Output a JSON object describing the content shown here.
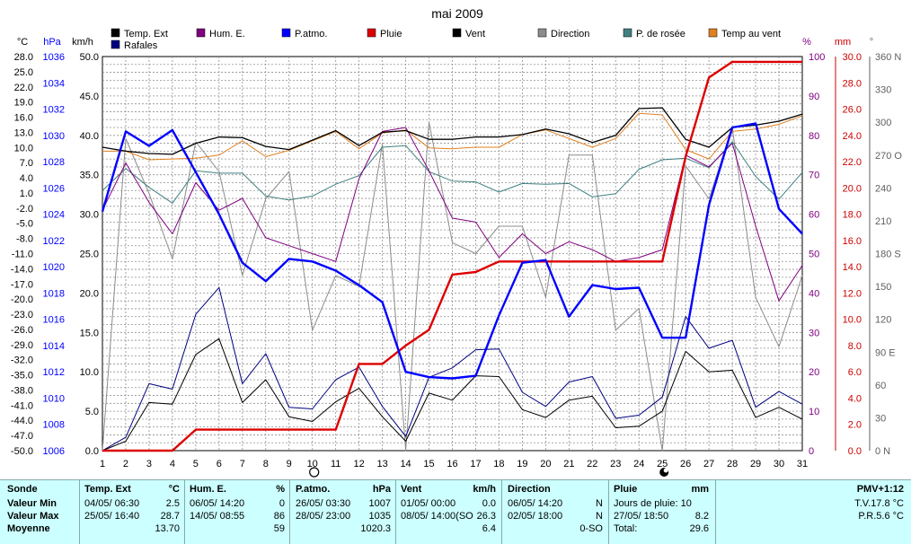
{
  "colors": {
    "temp": "#000000",
    "rafales": "#000080",
    "hum": "#800080",
    "patm": "#0000ff",
    "pluie": "#dd0000",
    "vent": "#000000",
    "direction": "#8c8c8c",
    "rosee": "#408080",
    "tvent": "#e08020",
    "grid": "#909090",
    "panel_bg": "#ccffff"
  },
  "chart_data": {
    "type": "line",
    "title": "mai 2009",
    "x": [
      1,
      2,
      3,
      4,
      5,
      6,
      7,
      8,
      9,
      10,
      11,
      12,
      13,
      14,
      15,
      16,
      17,
      18,
      19,
      20,
      21,
      22,
      23,
      24,
      25,
      26,
      27,
      28,
      29,
      30,
      31
    ],
    "axes": {
      "temp_c": {
        "unit": "°C",
        "ticks": [
          "28.0",
          "25.0",
          "22.0",
          "19.0",
          "16.0",
          "13.0",
          "10.0",
          "7.0",
          "4.0",
          "1.0",
          "-2.0",
          "-5.0",
          "-8.0",
          "-11.0",
          "-14.0",
          "-17.0",
          "-20.0",
          "-23.0",
          "-26.0",
          "-29.0",
          "-32.0",
          "-35.0",
          "-38.0",
          "-41.0",
          "-44.0",
          "-47.0",
          "-50.0"
        ]
      },
      "hpa": {
        "unit": "hPa",
        "ticks": [
          "1036",
          "1034",
          "1032",
          "1030",
          "1028",
          "1026",
          "1024",
          "1022",
          "1020",
          "1018",
          "1016",
          "1014",
          "1012",
          "1010",
          "1008",
          "1006"
        ],
        "range": [
          1006,
          1036
        ]
      },
      "kmh": {
        "unit": "km/h",
        "ticks": [
          "50.0",
          "45.0",
          "40.0",
          "35.0",
          "30.0",
          "25.0",
          "20.0",
          "15.0",
          "10.0",
          "5.0",
          "0.0"
        ],
        "range": [
          0,
          50
        ]
      },
      "pct": {
        "unit": "%",
        "ticks": [
          "100",
          "90",
          "80",
          "70",
          "60",
          "50",
          "40",
          "30",
          "20",
          "10",
          "0"
        ],
        "range": [
          0,
          100
        ]
      },
      "mm": {
        "unit": "mm",
        "ticks": [
          "30.0",
          "28.0",
          "26.0",
          "24.0",
          "22.0",
          "20.0",
          "18.0",
          "16.0",
          "14.0",
          "12.0",
          "10.0",
          "8.0",
          "6.0",
          "4.0",
          "2.0",
          "0.0"
        ],
        "range": [
          0,
          30
        ]
      },
      "deg": {
        "unit": "°",
        "ticks": [
          "360 N",
          "330",
          "300",
          "270 O",
          "240",
          "210",
          "180 S",
          "150",
          "120",
          "90 E",
          "60",
          "30",
          "0 N"
        ],
        "range": [
          0,
          360
        ]
      }
    },
    "markers": {
      "new_moon_day": 10,
      "full_moon_day": 25
    },
    "series": [
      {
        "name": "Temp. Ext",
        "color": "#000000",
        "axis": "kmh",
        "values": [
          38.5,
          38.0,
          37.7,
          37.6,
          39.0,
          39.8,
          39.7,
          38.6,
          38.2,
          39.4,
          40.6,
          38.7,
          40.4,
          40.6,
          39.5,
          39.5,
          39.8,
          39.8,
          40.1,
          40.8,
          40.2,
          39.1,
          40.0,
          43.4,
          43.5,
          39.5,
          38.5,
          41.0,
          41.3,
          41.8,
          42.7
        ]
      },
      {
        "name": "Rafales",
        "color": "#000080",
        "axis": "kmh",
        "values": [
          0.0,
          1.7,
          8.5,
          7.8,
          17.3,
          20.7,
          8.5,
          12.3,
          5.5,
          5.3,
          9.0,
          10.6,
          5.6,
          1.8,
          9.3,
          10.5,
          12.8,
          12.9,
          7.4,
          5.6,
          8.7,
          9.4,
          4.1,
          4.5,
          6.8,
          17.0,
          13.0,
          14.0,
          5.5,
          7.5,
          5.9
        ]
      },
      {
        "name": "Hum. E.",
        "color": "#800080",
        "axis": "pct",
        "values": [
          61,
          73,
          63,
          55,
          68,
          61,
          64,
          54,
          52,
          50,
          48,
          69,
          81,
          82,
          71,
          59,
          58,
          49,
          55,
          50,
          53,
          51,
          48,
          49,
          51,
          75,
          72,
          78,
          57,
          38,
          47
        ]
      },
      {
        "name": "P.atmo.",
        "color": "#0000ff",
        "axis": "hpa",
        "values": [
          1024.2,
          1030.3,
          1029.2,
          1030.4,
          1027.2,
          1024.0,
          1020.3,
          1018.9,
          1020.6,
          1020.4,
          1019.7,
          1018.6,
          1017.3,
          1012.0,
          1011.6,
          1011.5,
          1011.7,
          1016.3,
          1020.3,
          1020.5,
          1016.2,
          1018.6,
          1018.3,
          1018.4,
          1014.6,
          1014.6,
          1024.7,
          1030.6,
          1030.9,
          1024.4,
          1022.5
        ]
      },
      {
        "name": "Pluie",
        "color": "#dd0000",
        "axis": "mm",
        "values": [
          0,
          0,
          0,
          0,
          1.6,
          1.6,
          1.6,
          1.6,
          1.6,
          1.6,
          1.6,
          6.6,
          6.6,
          8.0,
          9.2,
          13.4,
          13.6,
          14.4,
          14.4,
          14.4,
          14.4,
          14.4,
          14.4,
          14.4,
          14.4,
          22.4,
          28.4,
          29.6,
          29.6,
          29.6,
          29.6
        ]
      },
      {
        "name": "Vent",
        "color": "#000000",
        "axis": "kmh",
        "values": [
          0.0,
          1.2,
          6.1,
          5.9,
          12.2,
          14.2,
          6.1,
          9.0,
          4.3,
          3.7,
          6.2,
          7.9,
          4.3,
          1.2,
          7.3,
          6.4,
          9.5,
          9.4,
          5.2,
          4.2,
          6.4,
          6.9,
          2.9,
          3.1,
          5.0,
          12.6,
          10.0,
          10.2,
          4.2,
          5.5,
          4.0
        ]
      },
      {
        "name": "Direction",
        "color": "#8c8c8c",
        "axis": "deg",
        "values": [
          0,
          285,
          235,
          175,
          282,
          255,
          160,
          230,
          255,
          110,
          160,
          150,
          280,
          0,
          300,
          190,
          180,
          205,
          205,
          140,
          270,
          270,
          110,
          130,
          0,
          260,
          230,
          295,
          140,
          95,
          160
        ]
      },
      {
        "name": "P. de rosée",
        "color": "#408080",
        "axis": "kmh",
        "values": [
          33.0,
          35.8,
          33.4,
          31.4,
          35.5,
          35.2,
          35.2,
          32.3,
          31.8,
          32.3,
          33.8,
          34.9,
          38.5,
          38.7,
          35.4,
          34.2,
          34.1,
          32.8,
          33.9,
          33.8,
          33.9,
          32.2,
          32.6,
          35.7,
          36.9,
          37.1,
          35.9,
          39.2,
          34.8,
          31.9,
          35.3
        ]
      },
      {
        "name": "Temp au vent",
        "color": "#e08020",
        "axis": "kmh",
        "values": [
          38.0,
          38.0,
          36.9,
          37.0,
          37.1,
          37.5,
          39.3,
          37.3,
          38.1,
          39.3,
          40.5,
          38.3,
          40.3,
          40.7,
          38.4,
          38.3,
          38.5,
          38.5,
          40.1,
          40.7,
          39.6,
          38.5,
          39.6,
          42.8,
          42.6,
          38.2,
          37.0,
          40.5,
          40.8,
          41.4,
          42.5
        ]
      }
    ]
  },
  "legend": [
    {
      "label": "Temp. Ext",
      "color": "#000000"
    },
    {
      "label": "Rafales",
      "color": "#000080"
    },
    {
      "label": "Hum. E.",
      "color": "#800080"
    },
    {
      "label": "P.atmo.",
      "color": "#0000ff"
    },
    {
      "label": "Pluie",
      "color": "#dd0000"
    },
    {
      "label": "Vent",
      "color": "#000000"
    },
    {
      "label": "Direction",
      "color": "#8c8c8c"
    },
    {
      "label": "P. de rosée",
      "color": "#408080"
    },
    {
      "label": "Temp au vent",
      "color": "#e08020"
    }
  ],
  "panel": {
    "sonde": {
      "title": "Sonde",
      "rows": [
        "Valeur Min",
        "Valeur Max",
        "Moyenne"
      ]
    },
    "temp": {
      "title": "Temp. Ext",
      "unit": "°C",
      "rows": [
        [
          "04/05/  06:30",
          "2.5"
        ],
        [
          "25/05/  16:40",
          "28.7"
        ],
        [
          "",
          "13.70"
        ]
      ]
    },
    "hum": {
      "title": "Hum. E.",
      "unit": "%",
      "rows": [
        [
          "06/05/  14:20",
          "0"
        ],
        [
          "14/05/  08:55",
          "86"
        ],
        [
          "",
          "59"
        ]
      ]
    },
    "patm": {
      "title": "P.atmo.",
      "unit": "hPa",
      "rows": [
        [
          "26/05/  03:30",
          "1007"
        ],
        [
          "28/05/  23:00",
          "1035"
        ],
        [
          "",
          "1020.3"
        ]
      ]
    },
    "vent": {
      "title": "Vent",
      "unit": "km/h",
      "rows": [
        [
          "01/05/  00:00",
          "0.0"
        ],
        [
          "08/05/  14:00(SO",
          "26.3"
        ],
        [
          "",
          "6.4"
        ]
      ]
    },
    "direction": {
      "title": "Direction",
      "rows": [
        [
          "06/05/  14:20",
          "N"
        ],
        [
          "02/05/  18:00",
          "N"
        ],
        [
          "",
          "0-SO"
        ]
      ]
    },
    "pluie": {
      "title": "Pluie",
      "unit": "mm",
      "rows": [
        [
          "Jours de pluie: 10",
          ""
        ],
        [
          "27/05/  18:50",
          "8.2"
        ],
        [
          "Total:",
          "29.6"
        ]
      ]
    },
    "pmv": {
      "title": "PMV+1:12",
      "rows": [
        "T.V.17.8 °C",
        "P.R.5.6 °C"
      ]
    }
  }
}
